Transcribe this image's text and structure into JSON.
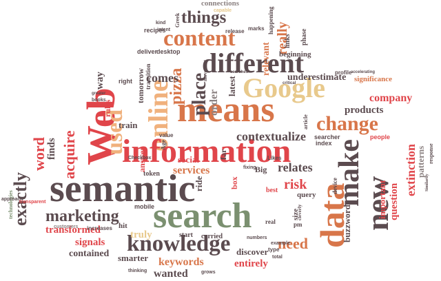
{
  "palette": {
    "dark": "#5b4b4f",
    "red": "#e0454a",
    "green": "#7b9070",
    "tan": "#f0b17d",
    "sand": "#e8c98c",
    "rust": "#d8764a",
    "gray": "#8c8282"
  },
  "words": [
    "connections",
    "things",
    "content",
    "different",
    "Google",
    "means",
    "Web",
    "online",
    "information",
    "semantic",
    "search",
    "data",
    "make",
    "new",
    "used",
    "place",
    "pizza",
    "change",
    "contextualize",
    "knowledge",
    "marketing",
    "exactly",
    "word",
    "acquire",
    "finds",
    "products",
    "company",
    "extinction",
    "patterns",
    "relates",
    "services",
    "risk",
    "question",
    "important",
    "buzzword",
    "signals",
    "transformed",
    "keywords",
    "wanted",
    "entirely",
    "need",
    "truly",
    "contained",
    "smarter",
    "discover",
    "carried",
    "start",
    "hit",
    "comes",
    "really",
    "relevant",
    "rules",
    "train",
    "tomorrow",
    "way",
    "order",
    "latest",
    "underestimate",
    "significance",
    "beginning",
    "phase",
    "links",
    "recipes",
    "deliver",
    "desktop",
    "transition",
    "social",
    "answer",
    "token",
    "Big",
    "query",
    "size",
    "pm",
    "real",
    "best",
    "people",
    "searcher",
    "index",
    "device",
    "mobile",
    "increases",
    "customers",
    "Checkbox",
    "value",
    "Age",
    "fixing",
    "Likes",
    "far",
    "box",
    "ride",
    "release",
    "marks",
    "profile",
    "happening",
    "Greek",
    "kind",
    "intent",
    "technologies",
    "approach",
    "transparent",
    "thinking",
    "grows",
    "total",
    "type",
    "example",
    "critical",
    "numbers",
    "article",
    "searches",
    "movement",
    "capable",
    "right",
    "books",
    "greater",
    "accelerating",
    "response",
    "Similarity",
    "cleverly"
  ]
}
